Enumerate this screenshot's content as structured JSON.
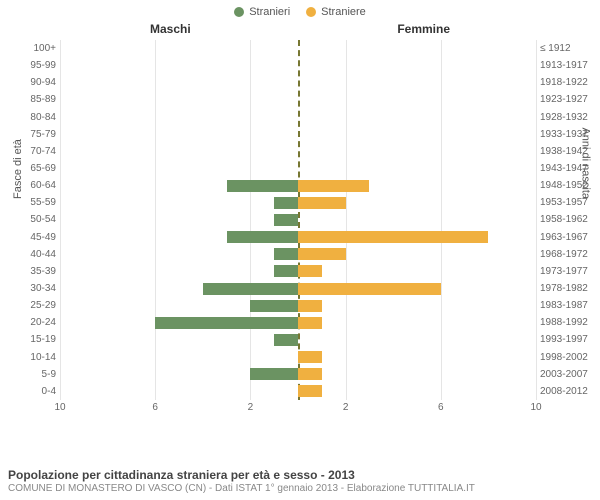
{
  "legend": {
    "male": {
      "label": "Stranieri",
      "color": "#6b9362"
    },
    "female": {
      "label": "Straniere",
      "color": "#f0b040"
    }
  },
  "headers": {
    "left": "Maschi",
    "right": "Femmine"
  },
  "axis_labels": {
    "left": "Fasce di età",
    "right": "Anni di nascita"
  },
  "chart": {
    "type": "population-pyramid",
    "xlim": 10,
    "xticks": [
      10,
      6,
      2,
      2,
      6,
      10
    ],
    "gridline_color": "#e5e5e5",
    "center_line_color": "#777733",
    "male_color": "#6b9362",
    "female_color": "#f0b040",
    "rows": [
      {
        "age": "100+",
        "birth": "≤ 1912",
        "m": 0,
        "f": 0
      },
      {
        "age": "95-99",
        "birth": "1913-1917",
        "m": 0,
        "f": 0
      },
      {
        "age": "90-94",
        "birth": "1918-1922",
        "m": 0,
        "f": 0
      },
      {
        "age": "85-89",
        "birth": "1923-1927",
        "m": 0,
        "f": 0
      },
      {
        "age": "80-84",
        "birth": "1928-1932",
        "m": 0,
        "f": 0
      },
      {
        "age": "75-79",
        "birth": "1933-1937",
        "m": 0,
        "f": 0
      },
      {
        "age": "70-74",
        "birth": "1938-1942",
        "m": 0,
        "f": 0
      },
      {
        "age": "65-69",
        "birth": "1943-1947",
        "m": 0,
        "f": 0
      },
      {
        "age": "60-64",
        "birth": "1948-1952",
        "m": 3,
        "f": 3
      },
      {
        "age": "55-59",
        "birth": "1953-1957",
        "m": 1,
        "f": 2
      },
      {
        "age": "50-54",
        "birth": "1958-1962",
        "m": 1,
        "f": 0
      },
      {
        "age": "45-49",
        "birth": "1963-1967",
        "m": 3,
        "f": 8
      },
      {
        "age": "40-44",
        "birth": "1968-1972",
        "m": 1,
        "f": 2
      },
      {
        "age": "35-39",
        "birth": "1973-1977",
        "m": 1,
        "f": 1
      },
      {
        "age": "30-34",
        "birth": "1978-1982",
        "m": 4,
        "f": 6
      },
      {
        "age": "25-29",
        "birth": "1983-1987",
        "m": 2,
        "f": 1
      },
      {
        "age": "20-24",
        "birth": "1988-1992",
        "m": 6,
        "f": 1
      },
      {
        "age": "15-19",
        "birth": "1993-1997",
        "m": 1,
        "f": 0
      },
      {
        "age": "10-14",
        "birth": "1998-2002",
        "m": 0,
        "f": 1
      },
      {
        "age": "5-9",
        "birth": "2003-2007",
        "m": 2,
        "f": 1
      },
      {
        "age": "0-4",
        "birth": "2008-2012",
        "m": 0,
        "f": 1
      }
    ]
  },
  "footer": {
    "title": "Popolazione per cittadinanza straniera per età e sesso - 2013",
    "subtitle": "COMUNE DI MONASTERO DI VASCO (CN) - Dati ISTAT 1° gennaio 2013 - Elaborazione TUTTITALIA.IT"
  }
}
